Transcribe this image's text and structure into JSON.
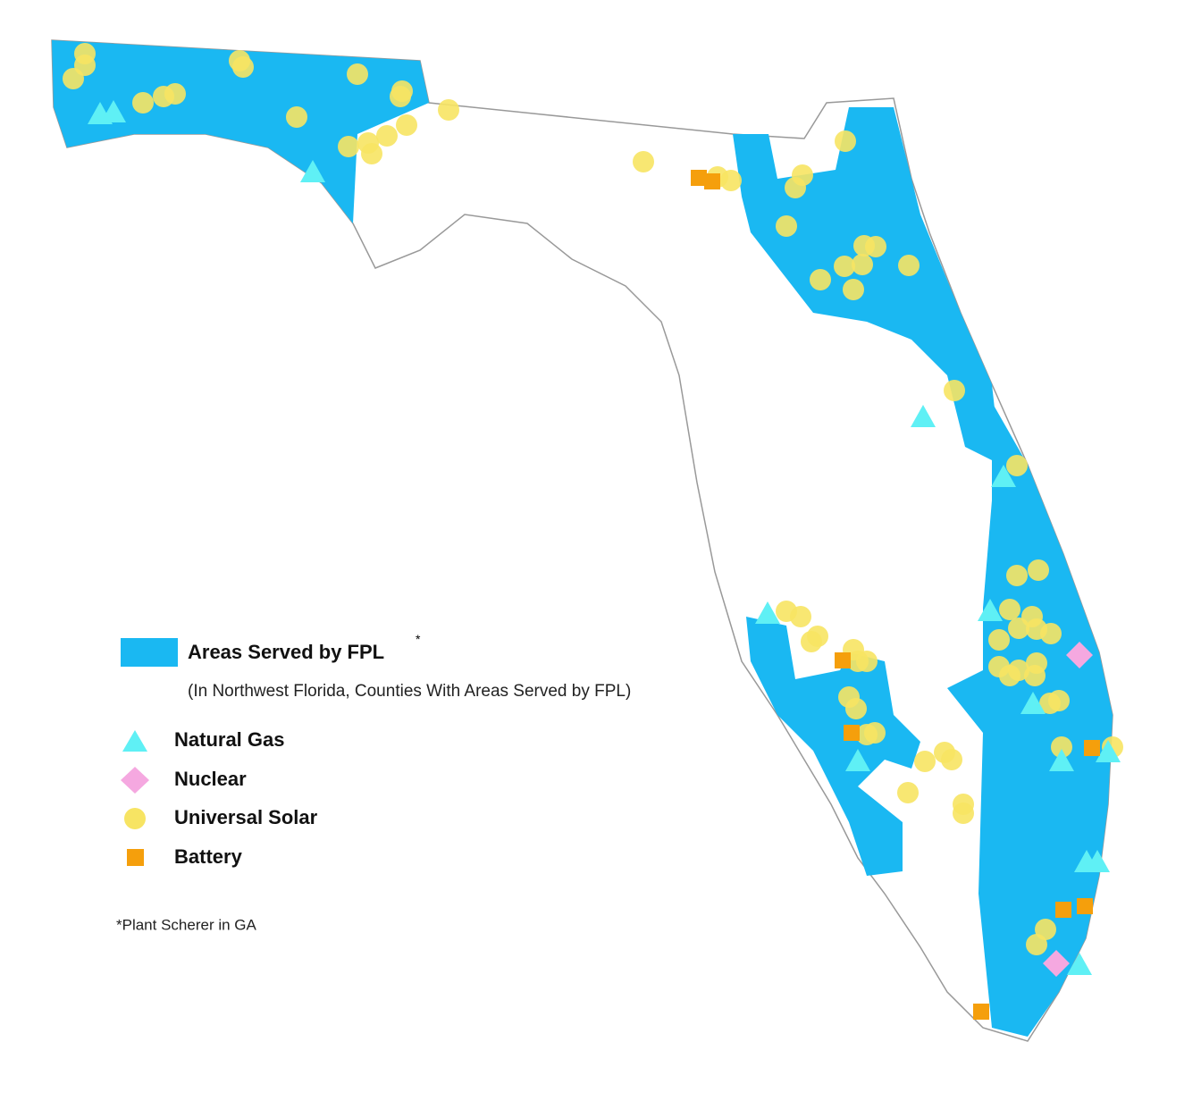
{
  "legend": {
    "items": [
      {
        "label": "Areas Served by FPL",
        "superscript": "*"
      },
      {
        "label": "Natural Gas"
      },
      {
        "label": "Nuclear"
      },
      {
        "label": "Universal Solar"
      },
      {
        "label": "Battery"
      }
    ],
    "note": "(In Northwest Florida, Counties With Areas Served by FPL)"
  },
  "footnote": "*Plant Scherer in GA"
}
